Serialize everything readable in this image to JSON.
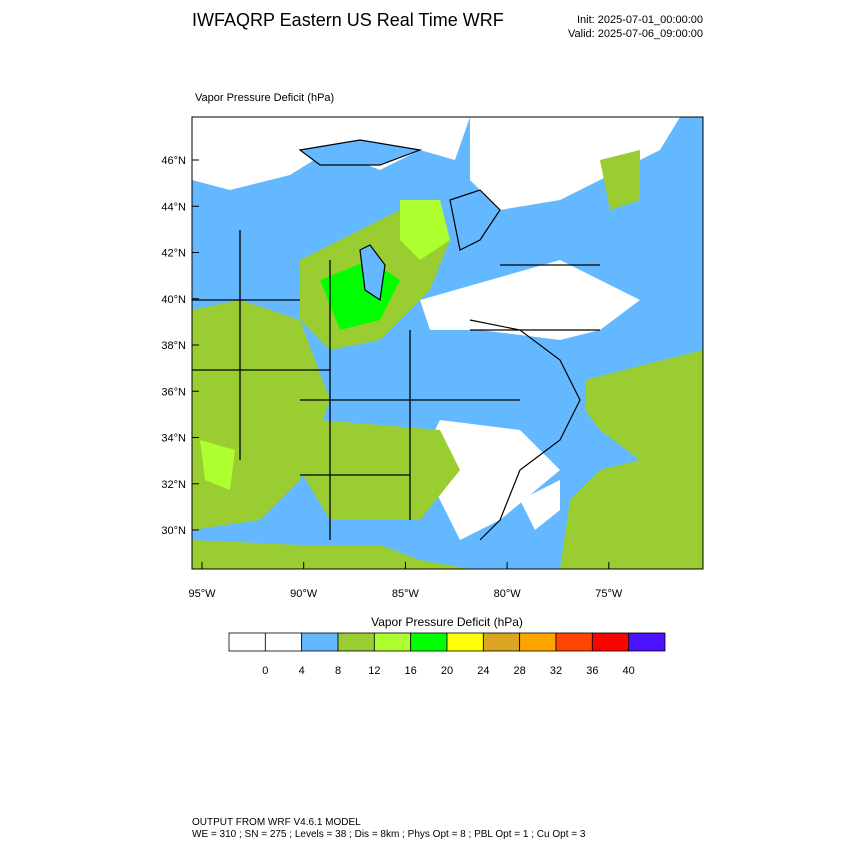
{
  "header": {
    "title": "IWFAQRP Eastern US Real Time WRF",
    "init": "Init: 2025-07-01_00:00:00",
    "valid": "Valid: 2025-07-06_09:00:00"
  },
  "map": {
    "title": "Vapor Pressure Deficit   (hPa)",
    "lat_labels": [
      "46°N",
      "44°N",
      "42°N",
      "40°N",
      "38°N",
      "36°N",
      "34°N",
      "32°N",
      "30°N"
    ],
    "lon_labels": [
      "95°W",
      "90°W",
      "85°W",
      "80°W",
      "75°W"
    ]
  },
  "colorbar": {
    "title": "Vapor Pressure Deficit  (hPa)",
    "colors": [
      "#ffffff",
      "#ffffff",
      "#63b8ff",
      "#9acd32",
      "#adff2f",
      "#00ff00",
      "#ffff00",
      "#daa520",
      "#ffa500",
      "#ff4500",
      "#ff0000",
      "#4a12ff"
    ],
    "labels": [
      0,
      4,
      8,
      12,
      16,
      20,
      24,
      28,
      32,
      36,
      40
    ]
  },
  "footer": {
    "line1": "OUTPUT FROM WRF V4.6.1 MODEL",
    "line2": "WE = 310 ; SN = 275 ; Levels = 38 ; Dis = 8km ; Phys Opt = 8 ; PBL Opt = 1 ; Cu Opt = 3"
  }
}
